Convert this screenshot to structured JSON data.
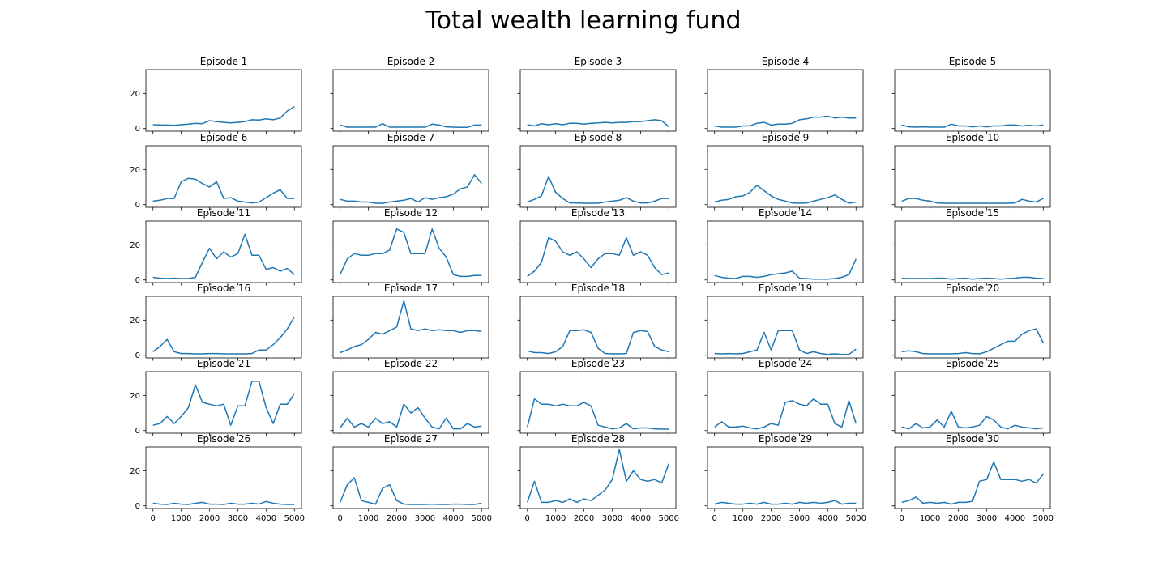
{
  "figure": {
    "title": "Total wealth learning fund"
  },
  "chart_data": {
    "type": "line",
    "layout": "6x5 small multiples, shared x and y axes",
    "title": "Total wealth learning fund",
    "xlim": [
      -250,
      5250
    ],
    "ylim": [
      -1.5,
      33.5
    ],
    "x_ticks": [
      0,
      1000,
      2000,
      3000,
      4000,
      5000
    ],
    "x_tick_labels": [
      "0",
      "1000",
      "2000",
      "3000",
      "4000",
      "5000"
    ],
    "y_ticks": [
      0,
      20
    ],
    "y_tick_labels": [
      "0",
      "20"
    ],
    "grid": false,
    "line_color": "#1f77b4",
    "x": [
      0,
      250,
      500,
      750,
      1000,
      1250,
      1500,
      1750,
      2000,
      2250,
      2500,
      2750,
      3000,
      3250,
      3500,
      3750,
      4000,
      4250,
      4500,
      4750,
      5000
    ],
    "series": [
      {
        "name": "Episode 1",
        "values": [
          2.2,
          2.0,
          2.0,
          1.8,
          2.2,
          2.5,
          3.0,
          2.8,
          4.5,
          4.0,
          3.5,
          3.2,
          3.5,
          4.0,
          5.0,
          4.8,
          5.5,
          5.0,
          6.0,
          10.0,
          12.5
        ]
      },
      {
        "name": "Episode 2",
        "values": [
          2.0,
          0.8,
          0.8,
          0.8,
          0.8,
          0.8,
          2.8,
          0.8,
          0.8,
          0.8,
          0.8,
          0.8,
          0.8,
          2.5,
          2.0,
          1.0,
          0.8,
          0.7,
          0.7,
          2.0,
          2.0
        ]
      },
      {
        "name": "Episode 3",
        "values": [
          2.2,
          1.5,
          2.8,
          2.2,
          2.8,
          2.2,
          3.0,
          3.0,
          2.5,
          3.0,
          3.2,
          3.5,
          3.2,
          3.5,
          3.5,
          4.0,
          4.0,
          4.5,
          5.0,
          4.5,
          1.0
        ]
      },
      {
        "name": "Episode 4",
        "values": [
          1.5,
          0.8,
          0.8,
          0.8,
          1.5,
          1.5,
          3.0,
          3.5,
          2.0,
          2.5,
          2.5,
          3.0,
          5.0,
          5.5,
          6.5,
          6.5,
          7.0,
          6.0,
          6.5,
          6.0,
          6.0
        ]
      },
      {
        "name": "Episode 5",
        "values": [
          2.0,
          1.0,
          0.8,
          1.0,
          0.8,
          0.8,
          0.8,
          2.5,
          1.5,
          1.5,
          1.0,
          1.5,
          1.0,
          1.5,
          1.5,
          2.0,
          2.0,
          1.5,
          1.8,
          1.5,
          2.0
        ]
      },
      {
        "name": "Episode 6",
        "values": [
          2.0,
          2.5,
          3.5,
          3.5,
          13.0,
          15.0,
          14.5,
          12.0,
          10.0,
          13.0,
          3.5,
          4.0,
          2.0,
          1.5,
          1.0,
          1.5,
          4.0,
          6.5,
          8.5,
          3.5,
          3.5
        ]
      },
      {
        "name": "Episode 7",
        "values": [
          3.0,
          2.0,
          2.0,
          1.5,
          1.5,
          0.8,
          0.8,
          1.5,
          2.0,
          2.5,
          3.5,
          1.5,
          4.0,
          3.0,
          4.0,
          4.5,
          6.0,
          9.0,
          10.0,
          17.0,
          12.0
        ]
      },
      {
        "name": "Episode 8",
        "values": [
          1.5,
          3.0,
          5.0,
          16.0,
          7.0,
          3.5,
          1.0,
          1.0,
          0.8,
          0.8,
          0.8,
          1.5,
          2.0,
          2.5,
          4.0,
          2.0,
          1.0,
          1.0,
          2.0,
          3.5,
          3.5
        ]
      },
      {
        "name": "Episode 9",
        "values": [
          1.5,
          2.5,
          3.0,
          4.5,
          5.0,
          7.0,
          11.0,
          8.0,
          5.0,
          3.0,
          2.0,
          1.0,
          0.8,
          1.0,
          2.0,
          3.0,
          4.0,
          5.5,
          3.0,
          0.8,
          1.5
        ]
      },
      {
        "name": "Episode 10",
        "values": [
          2.0,
          3.5,
          3.5,
          2.5,
          2.0,
          1.0,
          0.8,
          0.8,
          0.8,
          0.8,
          0.8,
          0.8,
          0.8,
          0.8,
          0.8,
          0.8,
          1.0,
          3.0,
          2.0,
          1.5,
          3.5
        ]
      },
      {
        "name": "Episode 11",
        "values": [
          1.5,
          1.0,
          0.8,
          1.0,
          0.8,
          0.8,
          1.5,
          10.0,
          18.0,
          12.0,
          16.0,
          13.0,
          15.0,
          26.0,
          14.0,
          14.0,
          6.0,
          7.0,
          5.0,
          6.5,
          3.0
        ]
      },
      {
        "name": "Episode 12",
        "values": [
          3.0,
          12.0,
          15.0,
          14.0,
          14.0,
          15.0,
          15.0,
          17.0,
          29.0,
          27.0,
          15.0,
          15.0,
          15.0,
          29.0,
          18.0,
          13.0,
          3.0,
          2.0,
          2.0,
          2.5,
          2.5
        ]
      },
      {
        "name": "Episode 13",
        "values": [
          2.0,
          5.0,
          10.0,
          24.0,
          22.0,
          16.0,
          14.0,
          16.0,
          12.0,
          7.0,
          12.0,
          15.0,
          15.0,
          14.0,
          24.0,
          14.0,
          16.0,
          14.0,
          7.0,
          3.0,
          4.0
        ]
      },
      {
        "name": "Episode 14",
        "values": [
          2.5,
          1.5,
          1.0,
          0.8,
          2.0,
          2.0,
          1.5,
          2.0,
          3.0,
          3.5,
          4.0,
          5.0,
          1.0,
          0.8,
          0.5,
          0.5,
          0.5,
          0.8,
          1.5,
          3.0,
          12.0
        ]
      },
      {
        "name": "Episode 15",
        "values": [
          1.0,
          0.8,
          0.8,
          0.8,
          0.8,
          1.0,
          1.0,
          0.5,
          0.8,
          1.0,
          0.5,
          0.8,
          1.0,
          0.8,
          0.5,
          0.8,
          1.0,
          1.5,
          1.5,
          1.0,
          0.8
        ]
      },
      {
        "name": "Episode 16",
        "values": [
          2.0,
          5.0,
          9.0,
          2.0,
          1.0,
          1.0,
          0.8,
          0.8,
          1.0,
          1.0,
          0.8,
          0.8,
          0.8,
          0.8,
          1.0,
          3.0,
          3.0,
          6.0,
          10.0,
          15.0,
          22.0
        ]
      },
      {
        "name": "Episode 17",
        "values": [
          1.5,
          3.0,
          5.0,
          6.0,
          9.0,
          13.0,
          12.0,
          14.0,
          16.0,
          31.0,
          15.0,
          14.0,
          15.0,
          14.0,
          14.5,
          14.0,
          14.0,
          13.0,
          14.0,
          14.0,
          13.5
        ]
      },
      {
        "name": "Episode 18",
        "values": [
          2.5,
          1.5,
          1.5,
          1.0,
          2.0,
          5.0,
          14.0,
          14.0,
          14.5,
          13.0,
          4.0,
          1.0,
          0.8,
          0.8,
          1.0,
          13.0,
          14.0,
          13.5,
          5.0,
          3.0,
          2.0
        ]
      },
      {
        "name": "Episode 19",
        "values": [
          1.0,
          0.8,
          1.0,
          0.8,
          1.0,
          2.0,
          3.0,
          13.0,
          3.0,
          14.0,
          14.0,
          14.0,
          3.0,
          1.0,
          2.0,
          1.0,
          0.5,
          0.8,
          0.5,
          0.5,
          3.5
        ]
      },
      {
        "name": "Episode 20",
        "values": [
          2.0,
          2.5,
          2.0,
          1.0,
          0.8,
          0.8,
          0.8,
          0.8,
          1.0,
          1.5,
          1.0,
          0.8,
          2.0,
          4.0,
          6.0,
          8.0,
          8.0,
          12.0,
          14.0,
          15.0,
          7.0
        ]
      },
      {
        "name": "Episode 21",
        "values": [
          3.0,
          4.0,
          8.0,
          4.0,
          8.0,
          13.0,
          26.0,
          16.0,
          15.0,
          14.0,
          15.0,
          3.0,
          14.0,
          14.0,
          28.0,
          28.0,
          13.0,
          4.0,
          15.0,
          15.0,
          21.0
        ]
      },
      {
        "name": "Episode 22",
        "values": [
          1.5,
          7.0,
          2.0,
          4.0,
          2.0,
          7.0,
          4.0,
          5.0,
          2.0,
          15.0,
          10.0,
          13.0,
          7.0,
          2.0,
          1.0,
          7.0,
          1.0,
          1.0,
          4.0,
          2.0,
          2.5
        ]
      },
      {
        "name": "Episode 23",
        "values": [
          2.0,
          18.0,
          15.0,
          15.0,
          14.0,
          15.0,
          14.0,
          14.0,
          16.0,
          14.0,
          3.0,
          2.0,
          1.0,
          1.5,
          4.0,
          1.0,
          1.5,
          1.5,
          1.0,
          0.8,
          0.8
        ]
      },
      {
        "name": "Episode 24",
        "values": [
          2.0,
          5.0,
          2.0,
          2.0,
          2.5,
          1.5,
          1.0,
          2.0,
          4.0,
          3.0,
          16.0,
          17.0,
          15.0,
          14.0,
          18.0,
          15.0,
          15.0,
          4.0,
          2.0,
          17.0,
          4.0
        ]
      },
      {
        "name": "Episode 25",
        "values": [
          2.0,
          1.0,
          4.0,
          1.5,
          2.0,
          6.0,
          2.0,
          11.0,
          2.0,
          1.5,
          2.0,
          3.0,
          8.0,
          6.0,
          2.0,
          1.0,
          3.0,
          2.0,
          1.5,
          1.0,
          1.5
        ]
      },
      {
        "name": "Episode 26",
        "values": [
          1.5,
          1.0,
          0.8,
          1.5,
          1.0,
          0.8,
          1.5,
          2.0,
          1.0,
          1.0,
          0.8,
          1.5,
          1.0,
          1.0,
          1.5,
          1.0,
          2.5,
          1.5,
          1.0,
          0.8,
          0.8
        ]
      },
      {
        "name": "Episode 27",
        "values": [
          2.0,
          12.0,
          16.0,
          3.0,
          2.0,
          1.0,
          10.0,
          12.0,
          3.0,
          1.0,
          0.8,
          0.8,
          0.8,
          1.0,
          0.8,
          0.8,
          1.0,
          1.0,
          0.8,
          0.8,
          1.5
        ]
      },
      {
        "name": "Episode 28",
        "values": [
          2.0,
          14.0,
          2.0,
          2.0,
          3.0,
          2.0,
          4.0,
          2.0,
          4.0,
          3.0,
          6.0,
          9.0,
          15.0,
          32.0,
          14.0,
          20.0,
          15.0,
          14.0,
          15.0,
          13.0,
          24.0
        ]
      },
      {
        "name": "Episode 29",
        "values": [
          1.0,
          2.0,
          1.5,
          1.0,
          1.0,
          1.5,
          1.0,
          2.0,
          1.0,
          1.0,
          1.5,
          1.0,
          2.0,
          1.5,
          2.0,
          1.5,
          2.0,
          3.0,
          1.0,
          1.5,
          1.5
        ]
      },
      {
        "name": "Episode 30",
        "values": [
          2.0,
          3.0,
          5.0,
          1.5,
          2.0,
          1.5,
          2.0,
          1.0,
          2.0,
          2.0,
          2.5,
          14.0,
          15.0,
          25.0,
          15.0,
          15.0,
          15.0,
          14.0,
          15.0,
          13.0,
          18.0
        ]
      }
    ]
  }
}
